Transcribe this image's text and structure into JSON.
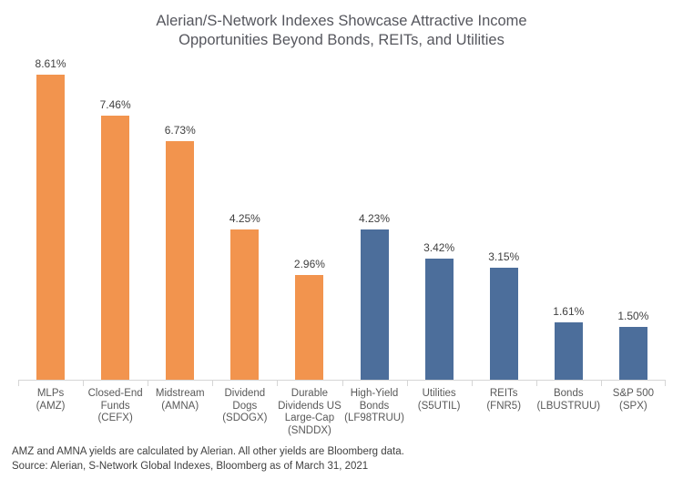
{
  "title": {
    "line1": "Alerian/S-Network Indexes Showcase Attractive Income",
    "line2": "Opportunities Beyond Bonds, REITs, and Utilities"
  },
  "chart_data": {
    "type": "bar",
    "title": "Alerian/S-Network Indexes Showcase Attractive Income Opportunities Beyond Bonds, REITs, and Utilities",
    "categories": [
      [
        "MLPs",
        "(AMZ)"
      ],
      [
        "Closed-End",
        "Funds",
        "(CEFX)"
      ],
      [
        "Midstream",
        "(AMNA)"
      ],
      [
        "Dividend",
        "Dogs",
        "(SDOGX)"
      ],
      [
        "Durable",
        "Dividends US",
        "Large-Cap",
        "(SNDDX)"
      ],
      [
        "High-Yield",
        "Bonds",
        "(LF98TRUU)"
      ],
      [
        "Utilities",
        "(S5UTIL)"
      ],
      [
        "REITs",
        "(FNR5)"
      ],
      [
        "Bonds",
        "(LBUSTRUU)"
      ],
      [
        "S&P 500",
        "(SPX)"
      ]
    ],
    "values": [
      8.61,
      7.46,
      6.73,
      4.25,
      2.96,
      4.23,
      3.42,
      3.15,
      1.61,
      1.5
    ],
    "value_labels": [
      "8.61%",
      "7.46%",
      "6.73%",
      "4.25%",
      "2.96%",
      "4.23%",
      "3.42%",
      "3.15%",
      "1.61%",
      "1.50%"
    ],
    "unit": "%",
    "bar_colors": [
      "#F2944E",
      "#F2944E",
      "#F2944E",
      "#F2944E",
      "#F2944E",
      "#4C6E9B",
      "#4C6E9B",
      "#4C6E9B",
      "#4C6E9B",
      "#4C6E9B"
    ],
    "palette": {
      "orange_alerian_snetwork_indexes": "#F2944E",
      "blue_benchmark_indexes": "#4C6E9B"
    },
    "xlabel": "",
    "ylabel": "",
    "ylim": [
      0,
      9
    ],
    "grid": false,
    "legend": "none",
    "value_labels_position": "above-bars"
  },
  "footnotes": {
    "line1": "AMZ and AMNA yields are calculated by Alerian. All other yields are Bloomberg data.",
    "line2": "Source: Alerian, S-Network Global Indexes, Bloomberg as of March 31, 2021"
  }
}
